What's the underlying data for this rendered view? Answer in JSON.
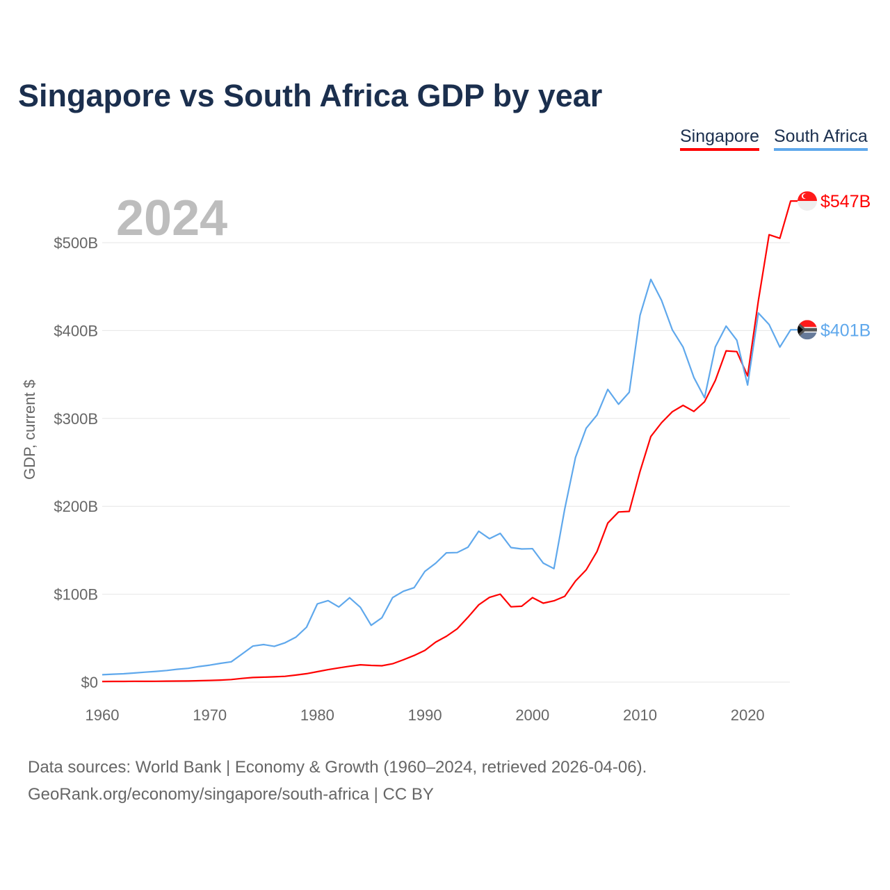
{
  "title": "Singapore vs South Africa GDP by year",
  "footer": {
    "line1": "Data sources: World Bank | Economy & Growth (1960–2024, retrieved 2026-04-06).",
    "line2": "GeoRank.org/economy/singapore/south-africa | CC BY"
  },
  "chart_data": {
    "type": "line",
    "title": "Singapore vs South Africa GDP by year",
    "ylabel": "GDP, current $",
    "xlabel": "",
    "year_label": "2024",
    "xlim": [
      1960,
      2024
    ],
    "ylim": [
      0,
      550
    ],
    "xticks": [
      1960,
      1970,
      1980,
      1990,
      2000,
      2010,
      2020
    ],
    "yticks": [
      {
        "v": 0,
        "label": "$0"
      },
      {
        "v": 100,
        "label": "$100B"
      },
      {
        "v": 200,
        "label": "$200B"
      },
      {
        "v": 300,
        "label": "$300B"
      },
      {
        "v": 400,
        "label": "$400B"
      },
      {
        "v": 500,
        "label": "$500B"
      }
    ],
    "legend_position": "top-right",
    "x_start": 1960,
    "series": [
      {
        "name": "Singapore",
        "color": "#ff0000",
        "end_label": "$547B",
        "flag": "singapore-flag",
        "values": [
          0.7,
          0.76,
          0.82,
          0.92,
          0.89,
          0.97,
          1.1,
          1.2,
          1.3,
          1.6,
          1.9,
          2.3,
          2.9,
          4.2,
          5.2,
          5.6,
          6.0,
          6.6,
          8.0,
          9.6,
          11.9,
          14.2,
          16.1,
          18.0,
          19.7,
          19.0,
          18.6,
          20.9,
          25.4,
          30.3,
          36.1,
          45.5,
          52.1,
          60.6,
          73.7,
          87.9,
          96.4,
          100.1,
          85.7,
          86.3,
          96.1,
          89.8,
          92.5,
          97.6,
          115.0,
          127.8,
          148.6,
          180.9,
          193.6,
          194.2,
          239.8,
          279.4,
          295.1,
          307.6,
          314.9,
          308.0,
          319.0,
          343.3,
          376.9,
          376.0,
          348.4,
          434.1,
          509.0,
          505.0,
          547.4
        ]
      },
      {
        "name": "South Africa",
        "color": "#5fa8ec",
        "end_label": "$401B",
        "flag": "south-africa-flag",
        "values": [
          8.4,
          9.0,
          9.5,
          10.4,
          11.3,
          12.2,
          13.2,
          14.6,
          15.7,
          17.7,
          19.3,
          21.4,
          23.1,
          32.0,
          41.0,
          42.7,
          40.7,
          44.8,
          51.1,
          62.5,
          89.0,
          92.7,
          85.5,
          96.0,
          85.1,
          64.6,
          73.2,
          96.2,
          103.4,
          107.4,
          126.0,
          135.3,
          147.1,
          147.4,
          153.5,
          171.7,
          163.2,
          169.2,
          153.1,
          151.5,
          151.8,
          135.4,
          129.1,
          197.0,
          255.8,
          288.9,
          303.9,
          333.1,
          316.1,
          329.8,
          417.4,
          458.2,
          434.4,
          400.9,
          381.2,
          346.7,
          323.6,
          381.4,
          405.1,
          389.0,
          338.0,
          420.0,
          406.9,
          381.2,
          400.9
        ]
      }
    ]
  }
}
